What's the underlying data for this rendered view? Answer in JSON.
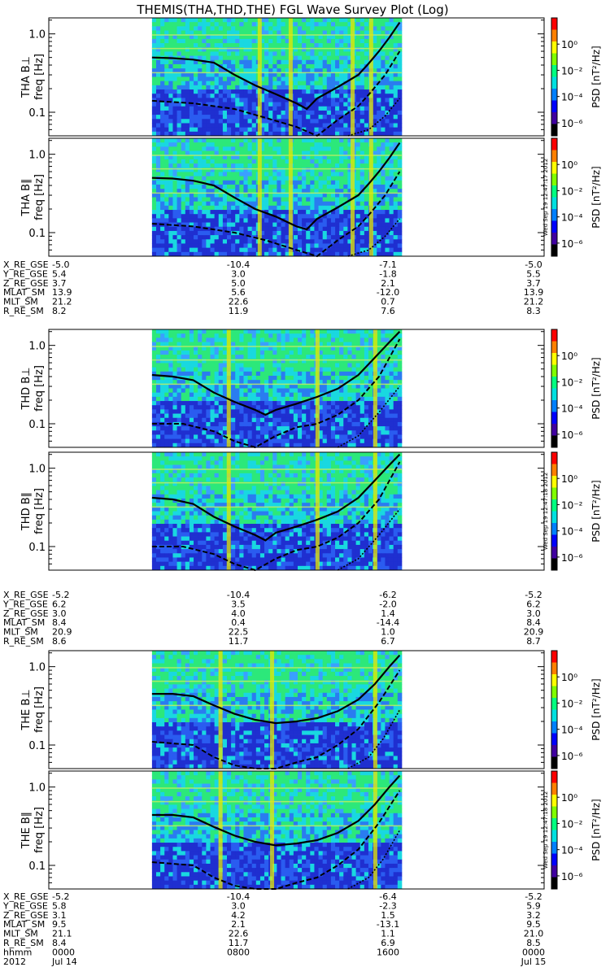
{
  "title": "THEMIS(THA,THD,THE) FGL Wave Survey Plot (Log)",
  "colors": {
    "bg": "#ffffff",
    "frame": "#000000",
    "trace": "#000000",
    "spectrogram_low": "#1f2fd0",
    "spectrogram_mid": "#19d8e0",
    "spectrogram_high": "#2ce87a",
    "band": "#e8e800"
  },
  "chart_data": {
    "type": "heatmap",
    "x_range": [
      "2012-07-14 00:00",
      "2012-07-15 00:00"
    ],
    "data_x_range": [
      "2012-07-14 05:00",
      "2012-07-14 17:00"
    ],
    "y_scale": "log",
    "ylim": [
      0.05,
      1.6
    ],
    "yticks": [
      0.1,
      1.0
    ],
    "ytick_labels": [
      "0.1",
      "1.0"
    ],
    "colorbar": {
      "label": "PSD [nT²/Hz]",
      "scale": "log",
      "range": [
        1e-07,
        100
      ],
      "ticks": [
        "10⁰",
        "10⁻²",
        "10⁻⁴",
        "10⁻⁶"
      ],
      "tick_values": [
        1,
        0.01,
        0.0001,
        1e-06
      ]
    },
    "panels": [
      {
        "probe": "THA",
        "component": "THA B⊥",
        "ylabel": "freq [Hz]",
        "bright_bands_hours": [
          10.2,
          11.7,
          14.7,
          15.6
        ],
        "solid": [
          [
            5.0,
            0.5
          ],
          [
            6.0,
            0.49
          ],
          [
            7.0,
            0.47
          ],
          [
            8.0,
            0.43
          ],
          [
            9.0,
            0.3
          ],
          [
            10.0,
            0.22
          ],
          [
            11.0,
            0.17
          ],
          [
            12.0,
            0.13
          ],
          [
            12.5,
            0.11
          ],
          [
            13.0,
            0.15
          ],
          [
            14.0,
            0.21
          ],
          [
            15.0,
            0.3
          ],
          [
            15.5,
            0.42
          ],
          [
            16.0,
            0.6
          ],
          [
            16.5,
            0.9
          ],
          [
            17.0,
            1.4
          ]
        ],
        "dashed": [
          [
            5.0,
            0.14
          ],
          [
            7.0,
            0.13
          ],
          [
            9.0,
            0.11
          ],
          [
            10.5,
            0.085
          ],
          [
            12.0,
            0.065
          ],
          [
            13.0,
            0.05
          ],
          [
            14.0,
            0.08
          ],
          [
            15.0,
            0.12
          ],
          [
            15.6,
            0.18
          ],
          [
            16.3,
            0.3
          ],
          [
            17.0,
            0.6
          ]
        ],
        "dotted": [
          [
            14.5,
            0.05
          ],
          [
            15.5,
            0.06
          ],
          [
            16.3,
            0.09
          ],
          [
            17.0,
            0.15
          ]
        ]
      },
      {
        "probe": "THA",
        "component": "THA B∥",
        "ylabel": "freq [Hz]",
        "bright_bands_hours": [
          10.2,
          11.7,
          14.7,
          15.6
        ],
        "solid": [
          [
            5.0,
            0.5
          ],
          [
            6.0,
            0.49
          ],
          [
            7.0,
            0.46
          ],
          [
            8.0,
            0.4
          ],
          [
            9.0,
            0.28
          ],
          [
            10.0,
            0.2
          ],
          [
            11.0,
            0.16
          ],
          [
            12.0,
            0.12
          ],
          [
            12.5,
            0.11
          ],
          [
            13.0,
            0.15
          ],
          [
            14.0,
            0.21
          ],
          [
            15.0,
            0.3
          ],
          [
            15.5,
            0.42
          ],
          [
            16.0,
            0.6
          ],
          [
            16.5,
            0.9
          ],
          [
            17.0,
            1.4
          ]
        ],
        "dashed": [
          [
            5.0,
            0.13
          ],
          [
            7.0,
            0.12
          ],
          [
            9.0,
            0.1
          ],
          [
            10.5,
            0.08
          ],
          [
            12.0,
            0.06
          ],
          [
            13.0,
            0.05
          ],
          [
            14.0,
            0.08
          ],
          [
            15.0,
            0.12
          ],
          [
            15.6,
            0.18
          ],
          [
            16.3,
            0.3
          ],
          [
            17.0,
            0.6
          ]
        ],
        "dotted": [
          [
            14.5,
            0.05
          ],
          [
            15.5,
            0.06
          ],
          [
            16.3,
            0.09
          ],
          [
            17.0,
            0.15
          ]
        ]
      },
      {
        "probe": "THD",
        "component": "THD B⊥",
        "ylabel": "freq [Hz]",
        "bright_bands_hours": [
          8.7,
          13.0,
          15.8
        ],
        "solid": [
          [
            5.0,
            0.42
          ],
          [
            6.0,
            0.4
          ],
          [
            7.0,
            0.36
          ],
          [
            8.0,
            0.25
          ],
          [
            9.0,
            0.19
          ],
          [
            10.0,
            0.15
          ],
          [
            10.5,
            0.13
          ],
          [
            11.0,
            0.15
          ],
          [
            12.0,
            0.18
          ],
          [
            13.0,
            0.22
          ],
          [
            14.0,
            0.28
          ],
          [
            15.0,
            0.42
          ],
          [
            15.8,
            0.7
          ],
          [
            16.5,
            1.1
          ],
          [
            17.0,
            1.5
          ]
        ],
        "dashed": [
          [
            5.0,
            0.1
          ],
          [
            6.5,
            0.1
          ],
          [
            8.0,
            0.08
          ],
          [
            9.0,
            0.06
          ],
          [
            10.0,
            0.05
          ],
          [
            11.0,
            0.07
          ],
          [
            12.0,
            0.09
          ],
          [
            13.0,
            0.1
          ],
          [
            14.0,
            0.13
          ],
          [
            15.0,
            0.2
          ],
          [
            16.0,
            0.4
          ],
          [
            17.0,
            1.2
          ]
        ],
        "dotted": [
          [
            14.0,
            0.05
          ],
          [
            15.0,
            0.07
          ],
          [
            16.0,
            0.14
          ],
          [
            17.0,
            0.3
          ]
        ]
      },
      {
        "probe": "THD",
        "component": "THD B∥",
        "ylabel": "freq [Hz]",
        "bright_bands_hours": [
          8.7,
          13.0,
          15.8
        ],
        "solid": [
          [
            5.0,
            0.42
          ],
          [
            6.0,
            0.4
          ],
          [
            7.0,
            0.35
          ],
          [
            8.0,
            0.24
          ],
          [
            9.0,
            0.18
          ],
          [
            10.0,
            0.14
          ],
          [
            10.5,
            0.12
          ],
          [
            11.0,
            0.15
          ],
          [
            12.0,
            0.18
          ],
          [
            13.0,
            0.22
          ],
          [
            14.0,
            0.28
          ],
          [
            15.0,
            0.42
          ],
          [
            15.8,
            0.7
          ],
          [
            16.5,
            1.1
          ],
          [
            17.0,
            1.5
          ]
        ],
        "dashed": [
          [
            5.0,
            0.1
          ],
          [
            6.5,
            0.1
          ],
          [
            8.0,
            0.08
          ],
          [
            9.0,
            0.06
          ],
          [
            10.0,
            0.05
          ],
          [
            11.0,
            0.07
          ],
          [
            12.0,
            0.09
          ],
          [
            13.0,
            0.1
          ],
          [
            14.0,
            0.13
          ],
          [
            15.0,
            0.2
          ],
          [
            16.0,
            0.4
          ],
          [
            17.0,
            1.2
          ]
        ],
        "dotted": [
          [
            14.0,
            0.05
          ],
          [
            15.0,
            0.07
          ],
          [
            16.0,
            0.14
          ],
          [
            17.0,
            0.3
          ]
        ]
      },
      {
        "probe": "THE",
        "component": "THE B⊥",
        "ylabel": "freq [Hz]",
        "bright_bands_hours": [
          8.3,
          10.8,
          15.8
        ],
        "solid": [
          [
            5.0,
            0.45
          ],
          [
            6.0,
            0.45
          ],
          [
            7.0,
            0.42
          ],
          [
            8.0,
            0.32
          ],
          [
            9.0,
            0.25
          ],
          [
            10.0,
            0.21
          ],
          [
            11.0,
            0.19
          ],
          [
            12.0,
            0.2
          ],
          [
            13.0,
            0.22
          ],
          [
            14.0,
            0.27
          ],
          [
            15.0,
            0.38
          ],
          [
            15.8,
            0.6
          ],
          [
            16.5,
            1.0
          ],
          [
            17.0,
            1.4
          ]
        ],
        "dashed": [
          [
            5.0,
            0.11
          ],
          [
            7.0,
            0.1
          ],
          [
            8.0,
            0.07
          ],
          [
            9.0,
            0.055
          ],
          [
            10.0,
            0.05
          ],
          [
            11.0,
            0.05
          ],
          [
            12.0,
            0.06
          ],
          [
            13.0,
            0.07
          ],
          [
            14.0,
            0.1
          ],
          [
            15.0,
            0.16
          ],
          [
            16.0,
            0.35
          ],
          [
            17.0,
            0.9
          ]
        ],
        "dotted": [
          [
            14.5,
            0.05
          ],
          [
            15.5,
            0.07
          ],
          [
            16.2,
            0.12
          ],
          [
            17.0,
            0.28
          ]
        ]
      },
      {
        "probe": "THE",
        "component": "THE B∥",
        "ylabel": "freq [Hz]",
        "bright_bands_hours": [
          8.3,
          10.8,
          15.8
        ],
        "solid": [
          [
            5.0,
            0.44
          ],
          [
            6.0,
            0.44
          ],
          [
            7.0,
            0.41
          ],
          [
            8.0,
            0.31
          ],
          [
            9.0,
            0.24
          ],
          [
            10.0,
            0.2
          ],
          [
            11.0,
            0.18
          ],
          [
            12.0,
            0.19
          ],
          [
            13.0,
            0.21
          ],
          [
            14.0,
            0.26
          ],
          [
            15.0,
            0.37
          ],
          [
            15.8,
            0.6
          ],
          [
            16.5,
            1.0
          ],
          [
            17.0,
            1.4
          ]
        ],
        "dashed": [
          [
            5.0,
            0.11
          ],
          [
            7.0,
            0.1
          ],
          [
            8.0,
            0.07
          ],
          [
            9.0,
            0.055
          ],
          [
            10.0,
            0.05
          ],
          [
            11.0,
            0.05
          ],
          [
            12.0,
            0.06
          ],
          [
            13.0,
            0.07
          ],
          [
            14.0,
            0.1
          ],
          [
            15.0,
            0.16
          ],
          [
            16.0,
            0.35
          ],
          [
            17.0,
            0.9
          ]
        ],
        "dotted": [
          [
            14.5,
            0.05
          ],
          [
            15.5,
            0.07
          ],
          [
            16.2,
            0.12
          ],
          [
            17.0,
            0.28
          ]
        ]
      }
    ],
    "stamps": [
      "Wed Sep 19 12:47:17 2012",
      "Wed Sep 19 12:47:18 2012",
      "Wed Sep 19 12:47:18 2012"
    ],
    "ephemeris_tables": [
      {
        "rows": [
          {
            "name": "X_RE_GSE",
            "values": [
              "-5.0",
              "-10.4",
              "-7.1",
              "-5.0"
            ]
          },
          {
            "name": "Y_RE_GSE",
            "values": [
              "5.4",
              "3.0",
              "-1.8",
              "5.5"
            ]
          },
          {
            "name": "Z_RE_GSE",
            "values": [
              "3.7",
              "5.0",
              "2.1",
              "3.7"
            ]
          },
          {
            "name": "MLAT_SM",
            "values": [
              "13.9",
              "5.6",
              "-12.0",
              "13.9"
            ]
          },
          {
            "name": "MLT_SM",
            "values": [
              "21.2",
              "22.6",
              "0.7",
              "21.2"
            ]
          },
          {
            "name": "R_RE_SM",
            "values": [
              "8.2",
              "11.9",
              "7.6",
              "8.3"
            ]
          }
        ]
      },
      {
        "rows": [
          {
            "name": "X_RE_GSE",
            "values": [
              "-5.2",
              "-10.4",
              "-6.2",
              "-5.2"
            ]
          },
          {
            "name": "Y_RE_GSE",
            "values": [
              "6.2",
              "3.5",
              "-2.0",
              "6.2"
            ]
          },
          {
            "name": "Z_RE_GSE",
            "values": [
              "3.0",
              "4.0",
              "1.4",
              "3.0"
            ]
          },
          {
            "name": "MLAT_SM",
            "values": [
              "8.4",
              "0.4",
              "-14.4",
              "8.4"
            ]
          },
          {
            "name": "MLT_SM",
            "values": [
              "20.9",
              "22.5",
              "1.0",
              "20.9"
            ]
          },
          {
            "name": "R_RE_SM",
            "values": [
              "8.6",
              "11.7",
              "6.7",
              "8.7"
            ]
          }
        ]
      },
      {
        "rows": [
          {
            "name": "X_RE_GSE",
            "values": [
              "-5.2",
              "-10.4",
              "-6.4",
              "-5.2"
            ]
          },
          {
            "name": "Y_RE_GSE",
            "values": [
              "5.8",
              "3.0",
              "-2.3",
              "5.9"
            ]
          },
          {
            "name": "Z_RE_GSE",
            "values": [
              "3.1",
              "4.2",
              "1.5",
              "3.2"
            ]
          },
          {
            "name": "MLAT_SM",
            "values": [
              "9.5",
              "2.1",
              "-13.1",
              "9.5"
            ]
          },
          {
            "name": "MLT_SM",
            "values": [
              "21.1",
              "22.6",
              "1.1",
              "21.0"
            ]
          },
          {
            "name": "R_RE_SM",
            "values": [
              "8.4",
              "11.7",
              "6.9",
              "8.5"
            ]
          },
          {
            "name": "hhmm",
            "values": [
              "0000",
              "0800",
              "1600",
              "0000"
            ]
          },
          {
            "name": "2012",
            "values": [
              "Jul 14",
              "",
              "",
              "Jul 15"
            ]
          }
        ]
      }
    ]
  }
}
